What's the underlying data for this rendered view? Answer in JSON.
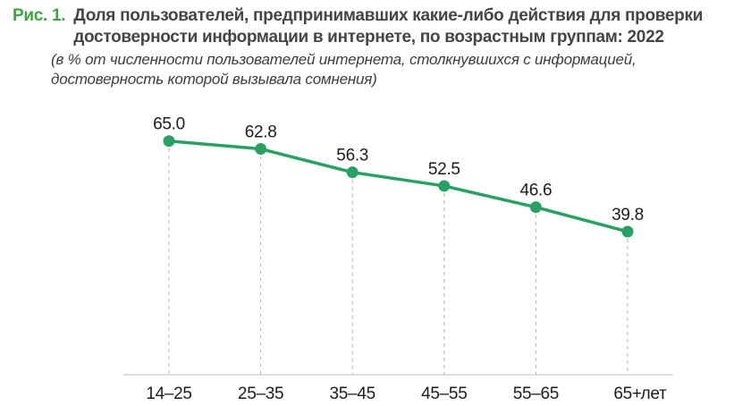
{
  "figure": {
    "label": "Рис. 1.",
    "title_lines": [
      "Доля пользователей, предпринимавших какие-либо действия для проверки",
      "достоверности информации в интернете, по возрастным группам: 2022"
    ],
    "subtitle_lines": [
      "(в % от численности пользователей интернета, столкнувшихся с информацией,",
      "достоверность которой вызывала сомнения)"
    ]
  },
  "chart_data": {
    "type": "line",
    "title": "Доля пользователей, предпринимавших какие-либо действия для проверки достоверности информации в интернете, по возрастным группам: 2022",
    "subtitle": "(в % от численности пользователей интернета, столкнувшихся с информацией, достоверность которой вызывала сомнения)",
    "categories": [
      "14–25",
      "25–35",
      "35–45",
      "45–55",
      "55–65",
      "65+"
    ],
    "values": [
      65.0,
      62.8,
      56.3,
      52.5,
      46.6,
      39.8
    ],
    "value_label_decimals": 1,
    "xlabel": "лет",
    "ylabel": "",
    "ylim": [
      0,
      70
    ],
    "legend": "none",
    "grid": "vertical dashed droplines from points to baseline",
    "colors": {
      "line": "#27A263",
      "marker": "#27A263",
      "dropline": "#B3B3B3",
      "axis_line": "#C9C9C9",
      "value_label": "#1C1C1C",
      "category_label": "#1C1C1C"
    }
  },
  "colors": {
    "accent_green": "#3FA43F",
    "title_text": "#454545",
    "background": "#FFFFFF"
  }
}
